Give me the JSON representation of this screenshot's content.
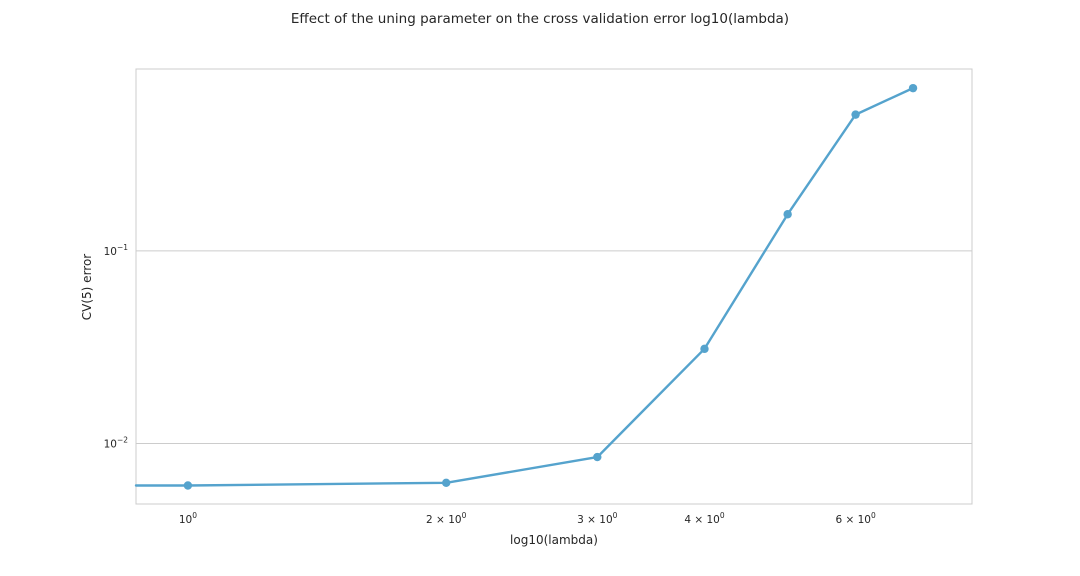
{
  "chart_data": {
    "type": "line",
    "title": "Effect of the uning parameter on the cross validation error log10(lambda)",
    "xlabel": "log10(lambda)",
    "ylabel": "CV(5) error",
    "xscale": "log",
    "yscale": "log",
    "x": [
      0.87,
      1,
      2,
      3,
      4,
      5,
      6,
      7
    ],
    "series": [
      {
        "values": [
          0.00605,
          0.00605,
          0.00625,
          0.0085,
          0.031,
          0.155,
          0.51,
          0.7
        ],
        "markers": [
          false,
          true,
          true,
          true,
          true,
          true,
          true,
          true
        ],
        "color": "#55a3cd"
      }
    ],
    "xlim": [
      0.87,
      8.2
    ],
    "ylim": [
      0.00485,
      0.88
    ],
    "xticks": [
      {
        "value": 1,
        "mantissa": "",
        "base": "10",
        "exp": "0"
      },
      {
        "value": 2,
        "mantissa": "2 × ",
        "base": "10",
        "exp": "0"
      },
      {
        "value": 3,
        "mantissa": "3 × ",
        "base": "10",
        "exp": "0"
      },
      {
        "value": 4,
        "mantissa": "4 × ",
        "base": "10",
        "exp": "0"
      },
      {
        "value": 6,
        "mantissa": "6 × ",
        "base": "10",
        "exp": "0"
      }
    ],
    "yticks": [
      {
        "value": 0.01,
        "base": "10",
        "exp": "−2"
      },
      {
        "value": 0.1,
        "base": "10",
        "exp": "−1"
      }
    ],
    "grid": "y",
    "frame_color": "#cccccc",
    "grid_color": "#cccccc"
  }
}
